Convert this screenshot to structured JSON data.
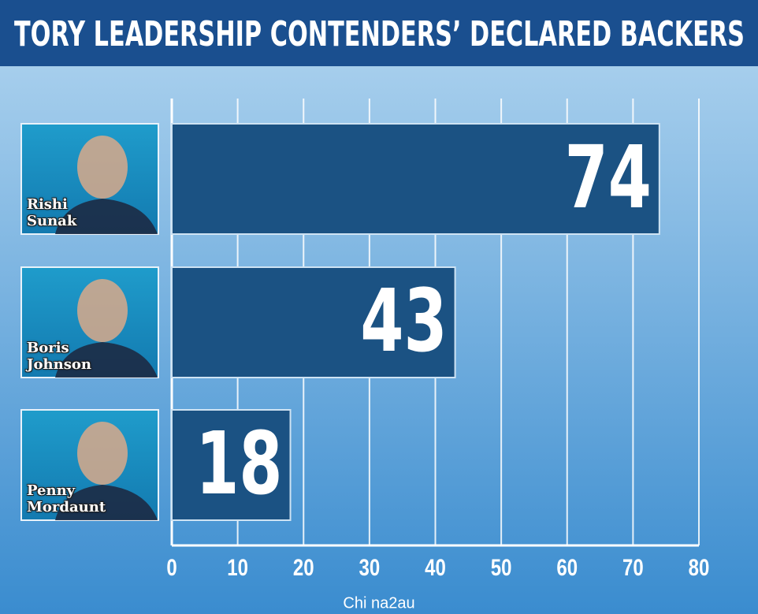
{
  "chart_data": {
    "type": "bar",
    "orientation": "horizontal",
    "title": "TORY LEADERSHIP CONTENDERS’ DECLARED BACKERS",
    "categories": [
      "Rishi Sunak",
      "Boris Johnson",
      "Penny Mordaunt"
    ],
    "values": [
      74,
      43,
      18
    ],
    "color": "#1b5283",
    "xlim": [
      0,
      80
    ],
    "xticks": [
      0,
      10,
      20,
      30,
      40,
      50,
      60,
      70,
      80
    ],
    "grid": true
  },
  "watermark": "Chi na2au"
}
